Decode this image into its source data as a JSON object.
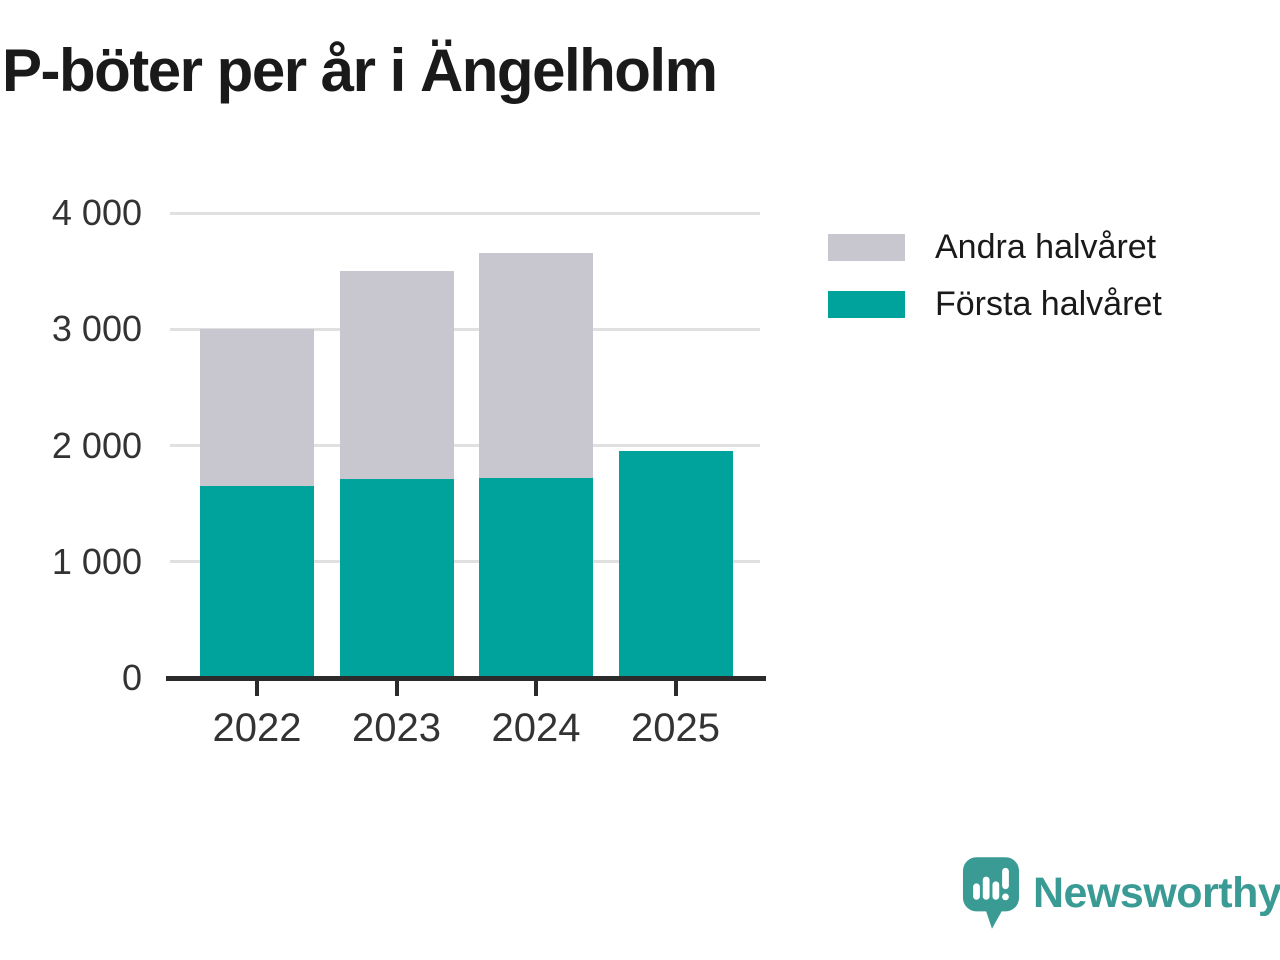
{
  "title": "P-böter per år i Ängelholm",
  "chart_data": {
    "type": "bar",
    "stacked": true,
    "title": "P-böter per år i Ängelholm",
    "categories": [
      "2022",
      "2023",
      "2024",
      "2025"
    ],
    "series": [
      {
        "name": "Första halvåret",
        "color": "#00a39b",
        "values": [
          1650,
          1710,
          1720,
          1950
        ]
      },
      {
        "name": "Andra halvåret",
        "color": "#c8c6ce",
        "values": [
          1350,
          1790,
          1940,
          0
        ]
      }
    ],
    "totals": [
      3000,
      3500,
      3660,
      1950
    ],
    "xlabel": "",
    "ylabel": "",
    "ylim": [
      0,
      4000
    ],
    "yticks": [
      {
        "value": 4000,
        "label": "4 000"
      },
      {
        "value": 3000,
        "label": "3 000"
      },
      {
        "value": 2000,
        "label": "2 000"
      },
      {
        "value": 1000,
        "label": "1 000"
      },
      {
        "value": 0,
        "label": "0"
      }
    ],
    "grid": true,
    "legend_position": "right"
  },
  "legend": {
    "items": [
      {
        "label": "Andra halvåret",
        "color": "#c8c6ce"
      },
      {
        "label": "Första halvåret",
        "color": "#00a39b"
      }
    ]
  },
  "branding": {
    "name": "Newsworthy",
    "color": "#3a9b94",
    "icon": "newsworthy-speech-bubble-bar-chart-icon"
  },
  "colors": {
    "first_half": "#00a39b",
    "second_half": "#c8c6ce",
    "axis": "#2b2b2b",
    "grid": "#e0e0e0",
    "tick_text": "#333333",
    "title_text": "#1a1a1a"
  }
}
